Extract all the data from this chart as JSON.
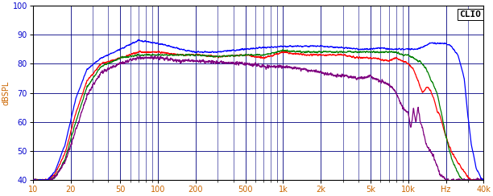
{
  "title": "CLIO",
  "ylabel": "dBSPL",
  "xlabel": "Hz",
  "xmin": 10,
  "xmax": 40000,
  "ymin": 40,
  "ymax": 100,
  "yticks": [
    40,
    50,
    60,
    70,
    80,
    90,
    100
  ],
  "xtick_labels": [
    "10",
    "20",
    "50",
    "100",
    "200",
    "500",
    "1k",
    "2k",
    "5k",
    "10k",
    "Hz",
    "40k"
  ],
  "xtick_values": [
    10,
    20,
    50,
    100,
    200,
    500,
    1000,
    2000,
    5000,
    10000,
    20000,
    40000
  ],
  "plot_bg": "#ffffff",
  "fig_bg": "#ffffff",
  "grid_color": "#000080",
  "tick_label_color": "#0000cc",
  "xtick_label_color": "#cc6600",
  "spine_color": "#000000",
  "line_colors": [
    "#0000ff",
    "#ff0000",
    "#008000",
    "#800080"
  ],
  "line_width": 0.9,
  "title_color": "#000000",
  "ylabel_color": "#cc6600"
}
